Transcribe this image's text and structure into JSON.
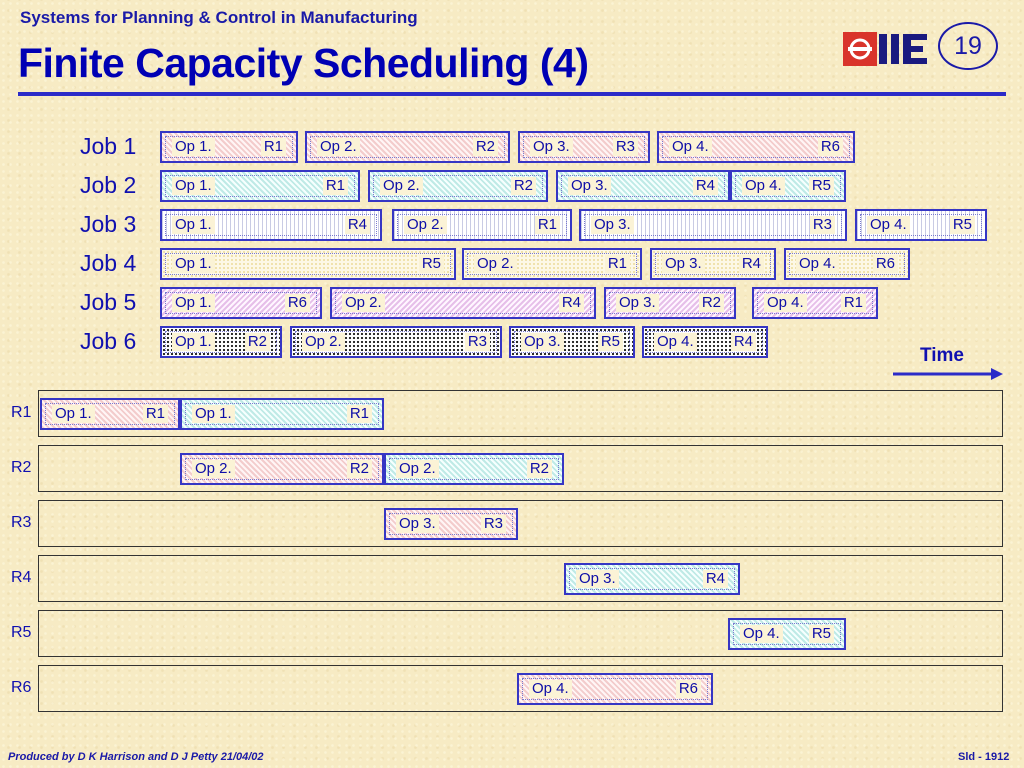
{
  "header": {
    "subtitle": "Systems for Planning & Control in Manufacturing",
    "title": "Finite Capacity Scheduling (4)",
    "slide_number": "19",
    "logo": "iie-logo"
  },
  "jobs": [
    {
      "label": "Job 1",
      "ops": [
        {
          "op": "Op 1.",
          "res": "R1",
          "pattern": "p1"
        },
        {
          "op": "Op 2.",
          "res": "R2",
          "pattern": "p1"
        },
        {
          "op": "Op 3.",
          "res": "R3",
          "pattern": "p1"
        },
        {
          "op": "Op 4.",
          "res": "R6",
          "pattern": "p1"
        }
      ]
    },
    {
      "label": "Job 2",
      "ops": [
        {
          "op": "Op 1.",
          "res": "R1",
          "pattern": "p2"
        },
        {
          "op": "Op 2.",
          "res": "R2",
          "pattern": "p2"
        },
        {
          "op": "Op 3.",
          "res": "R4",
          "pattern": "p2"
        },
        {
          "op": "Op 4.",
          "res": "R5",
          "pattern": "p2"
        }
      ]
    },
    {
      "label": "Job 3",
      "ops": [
        {
          "op": "Op 1.",
          "res": "R4",
          "pattern": "p3"
        },
        {
          "op": "Op 2.",
          "res": "R1",
          "pattern": "p3"
        },
        {
          "op": "Op 3.",
          "res": "R3",
          "pattern": "p3"
        },
        {
          "op": "Op 4.",
          "res": "R5",
          "pattern": "p3"
        }
      ]
    },
    {
      "label": "Job 4",
      "ops": [
        {
          "op": "Op 1.",
          "res": "R5",
          "pattern": "p4"
        },
        {
          "op": "Op 2.",
          "res": "R1",
          "pattern": "p4"
        },
        {
          "op": "Op 3.",
          "res": "R4",
          "pattern": "p4"
        },
        {
          "op": "Op 4.",
          "res": "R6",
          "pattern": "p4"
        }
      ]
    },
    {
      "label": "Job 5",
      "ops": [
        {
          "op": "Op 1.",
          "res": "R6",
          "pattern": "p5"
        },
        {
          "op": "Op 2.",
          "res": "R4",
          "pattern": "p5"
        },
        {
          "op": "Op 3.",
          "res": "R2",
          "pattern": "p5"
        },
        {
          "op": "Op 4.",
          "res": "R1",
          "pattern": "p5"
        }
      ]
    },
    {
      "label": "Job 6",
      "ops": [
        {
          "op": "Op 1.",
          "res": "R2",
          "pattern": "p6"
        },
        {
          "op": "Op 2.",
          "res": "R3",
          "pattern": "p6"
        },
        {
          "op": "Op 3.",
          "res": "R5",
          "pattern": "p6"
        },
        {
          "op": "Op 4.",
          "res": "R4",
          "pattern": "p6"
        }
      ]
    }
  ],
  "time_label": "Time",
  "resources": [
    {
      "label": "R1",
      "bars": [
        {
          "op": "Op 1.",
          "res": "R1",
          "pattern": "p1"
        },
        {
          "op": "Op 1.",
          "res": "R1",
          "pattern": "p2"
        }
      ]
    },
    {
      "label": "R2",
      "bars": [
        {
          "op": "Op 2.",
          "res": "R2",
          "pattern": "p1"
        },
        {
          "op": "Op 2.",
          "res": "R2",
          "pattern": "p2"
        }
      ]
    },
    {
      "label": "R3",
      "bars": [
        {
          "op": "Op 3.",
          "res": "R3",
          "pattern": "p1"
        }
      ]
    },
    {
      "label": "R4",
      "bars": [
        {
          "op": "Op 3.",
          "res": "R4",
          "pattern": "p2"
        }
      ]
    },
    {
      "label": "R5",
      "bars": [
        {
          "op": "Op 4.",
          "res": "R5",
          "pattern": "p2"
        }
      ]
    },
    {
      "label": "R6",
      "bars": [
        {
          "op": "Op 4.",
          "res": "R6",
          "pattern": "p1"
        }
      ]
    }
  ],
  "footer": {
    "credit": "Produced by D K Harrison and D J Petty 21/04/02",
    "slide_id": "Sld - 1912"
  }
}
